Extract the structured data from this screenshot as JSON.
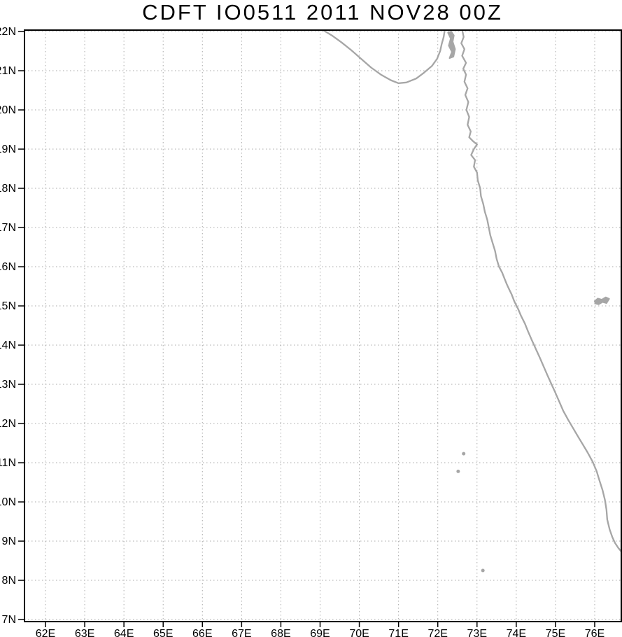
{
  "title": "CDFT IO0511 2011 NOV28 00Z",
  "colors": {
    "background": "#ffffff",
    "frame": "#000000",
    "grid": "#aaaaaa",
    "coastline": "#a6a6a6",
    "text": "#000000"
  },
  "chart_data": {
    "type": "map",
    "title": "CDFT IO0511 2011 NOV28 00Z",
    "region": "Arabian Sea and west coast of India",
    "grid": "dotted",
    "lon_axis": {
      "min": 61.465,
      "max": 76.678,
      "tick_values": [
        62,
        63,
        64,
        65,
        66,
        67,
        68,
        69,
        70,
        71,
        72,
        73,
        74,
        75,
        76
      ],
      "tick_labels": [
        "62E",
        "63E",
        "64E",
        "65E",
        "66E",
        "67E",
        "68E",
        "69E",
        "70E",
        "71E",
        "72E",
        "73E",
        "74E",
        "75E",
        "76E"
      ]
    },
    "lat_axis": {
      "min": 6.947,
      "max": 22.036,
      "tick_values": [
        22,
        21,
        20,
        19,
        18,
        17,
        16,
        15,
        14,
        13,
        12,
        11,
        10,
        9,
        8,
        7
      ],
      "tick_labels": [
        "22N",
        "21N",
        "20N",
        "19N",
        "18N",
        "17N",
        "16N",
        "15N",
        "14N",
        "13N",
        "12N",
        "11N",
        "10N",
        "9N",
        "8N",
        "7N"
      ]
    },
    "coastlines": [
      {
        "name": "saurashtra-south-coast",
        "points": [
          [
            69.05,
            22.05
          ],
          [
            69.3,
            21.9
          ],
          [
            69.55,
            21.72
          ],
          [
            69.8,
            21.52
          ],
          [
            70.05,
            21.3
          ],
          [
            70.3,
            21.08
          ],
          [
            70.55,
            20.9
          ],
          [
            70.8,
            20.76
          ],
          [
            71.0,
            20.68
          ],
          [
            71.2,
            20.7
          ],
          [
            71.45,
            20.8
          ],
          [
            71.65,
            20.95
          ],
          [
            71.85,
            21.12
          ],
          [
            71.98,
            21.3
          ],
          [
            72.06,
            21.5
          ],
          [
            72.1,
            21.68
          ],
          [
            72.15,
            21.86
          ],
          [
            72.18,
            22.05
          ]
        ]
      },
      {
        "name": "india-west-coast",
        "points": [
          [
            72.62,
            22.05
          ],
          [
            72.66,
            21.86
          ],
          [
            72.6,
            21.7
          ],
          [
            72.68,
            21.55
          ],
          [
            72.62,
            21.38
          ],
          [
            72.72,
            21.2
          ],
          [
            72.65,
            21.05
          ],
          [
            72.72,
            20.9
          ],
          [
            72.68,
            20.72
          ],
          [
            72.76,
            20.55
          ],
          [
            72.7,
            20.38
          ],
          [
            72.78,
            20.2
          ],
          [
            72.73,
            20.0
          ],
          [
            72.8,
            19.82
          ],
          [
            72.76,
            19.62
          ],
          [
            72.84,
            19.45
          ],
          [
            72.8,
            19.3
          ],
          [
            72.9,
            19.2
          ],
          [
            73.0,
            19.12
          ],
          [
            72.92,
            19.0
          ],
          [
            72.85,
            18.85
          ],
          [
            72.95,
            18.72
          ],
          [
            72.92,
            18.55
          ],
          [
            73.0,
            18.4
          ],
          [
            73.02,
            18.2
          ],
          [
            73.08,
            18.0
          ],
          [
            73.1,
            17.8
          ],
          [
            73.16,
            17.6
          ],
          [
            73.2,
            17.4
          ],
          [
            73.26,
            17.2
          ],
          [
            73.3,
            17.0
          ],
          [
            73.34,
            16.8
          ],
          [
            73.4,
            16.6
          ],
          [
            73.46,
            16.4
          ],
          [
            73.5,
            16.2
          ],
          [
            73.56,
            16.0
          ],
          [
            73.64,
            15.85
          ],
          [
            73.7,
            15.7
          ],
          [
            73.76,
            15.55
          ],
          [
            73.82,
            15.42
          ],
          [
            73.88,
            15.3
          ],
          [
            73.95,
            15.12
          ],
          [
            74.05,
            14.92
          ],
          [
            74.12,
            14.75
          ],
          [
            74.22,
            14.55
          ],
          [
            74.3,
            14.35
          ],
          [
            74.4,
            14.12
          ],
          [
            74.5,
            13.9
          ],
          [
            74.6,
            13.68
          ],
          [
            74.7,
            13.45
          ],
          [
            74.8,
            13.22
          ],
          [
            74.9,
            13.0
          ],
          [
            75.0,
            12.78
          ],
          [
            75.1,
            12.55
          ],
          [
            75.2,
            12.32
          ],
          [
            75.32,
            12.1
          ],
          [
            75.45,
            11.88
          ],
          [
            75.58,
            11.66
          ],
          [
            75.7,
            11.46
          ],
          [
            75.82,
            11.26
          ],
          [
            75.95,
            11.02
          ],
          [
            76.05,
            10.78
          ],
          [
            76.12,
            10.55
          ],
          [
            76.2,
            10.3
          ],
          [
            76.26,
            10.05
          ],
          [
            76.3,
            9.8
          ],
          [
            76.32,
            9.55
          ],
          [
            76.38,
            9.3
          ],
          [
            76.45,
            9.1
          ],
          [
            76.52,
            8.95
          ],
          [
            76.6,
            8.83
          ],
          [
            76.69,
            8.72
          ]
        ]
      }
    ],
    "filled_features": [
      {
        "name": "gulf-of-khambhat-islet",
        "points": [
          [
            72.26,
            21.97
          ],
          [
            72.33,
            21.82
          ],
          [
            72.28,
            21.64
          ],
          [
            72.36,
            21.48
          ],
          [
            72.3,
            21.32
          ],
          [
            72.4,
            21.36
          ],
          [
            72.44,
            21.55
          ],
          [
            72.38,
            21.74
          ],
          [
            72.41,
            21.9
          ],
          [
            72.34,
            22.0
          ]
        ]
      },
      {
        "name": "tungabhadra-reservoir",
        "points": [
          [
            76.0,
            15.12
          ],
          [
            76.08,
            15.19
          ],
          [
            76.18,
            15.16
          ],
          [
            76.28,
            15.22
          ],
          [
            76.37,
            15.18
          ],
          [
            76.3,
            15.07
          ],
          [
            76.2,
            15.1
          ],
          [
            76.1,
            15.04
          ],
          [
            76.02,
            15.06
          ]
        ]
      }
    ],
    "islands": [
      {
        "name": "lakshadweep-island-1",
        "lon": 72.66,
        "lat": 11.23
      },
      {
        "name": "lakshadweep-island-2",
        "lon": 72.52,
        "lat": 10.78
      },
      {
        "name": "minicoy-island",
        "lon": 73.15,
        "lat": 8.25
      }
    ]
  }
}
